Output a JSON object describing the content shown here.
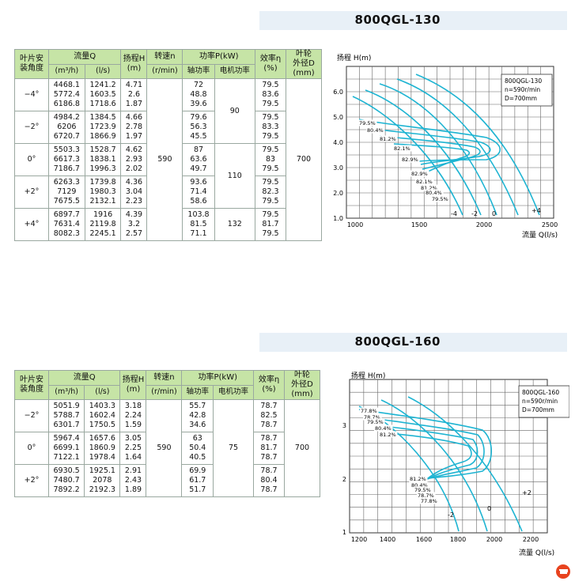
{
  "sections": [
    {
      "model": "800QGL-130",
      "headers": {
        "angle": "叶片安\n装角度",
        "flow": "流量Q",
        "flow_m3": "(m³/h)",
        "flow_ls": "(l/s)",
        "head": "扬程H\n(m)",
        "speed": "转速n",
        "speed_unit": "(r/min)",
        "power": "功率P(kW)",
        "shaft_power": "轴功率",
        "motor_power": "电机功率",
        "eff": "效率η\n(%)",
        "dia": "叶轮\n外径D\n(mm)"
      },
      "speed_value": "590",
      "dia_value": "700",
      "rows": [
        {
          "angle": "−4°",
          "q_m3": "4468.1\n5772.4\n6186.8",
          "q_ls": "1241.2\n1603.5\n1718.6",
          "h": "4.71\n2.6\n1.87",
          "shaft": "72\n48.8\n39.6",
          "eff": "79.5\n83.6\n79.5"
        },
        {
          "angle": "−2°",
          "q_m3": "4984.2\n6206\n6720.7",
          "q_ls": "1384.5\n1723.9\n1866.9",
          "h": "4.66\n2.78\n1.97",
          "shaft": "79.6\n56.3\n45.5",
          "eff": "79.5\n83.3\n79.5"
        },
        {
          "angle": "0°",
          "q_m3": "5503.3\n6617.3\n7186.7",
          "q_ls": "1528.7\n1838.1\n1996.3",
          "h": "4.62\n2.93\n2.02",
          "shaft": "87\n63.6\n49.7",
          "eff": "79.5\n83\n79.5"
        },
        {
          "angle": "+2°",
          "q_m3": "6263.3\n7129\n7675.5",
          "q_ls": "1739.8\n1980.3\n2132.1",
          "h": "4.36\n3.04\n2.23",
          "shaft": "93.6\n71.4\n58.6",
          "eff": "79.5\n82.3\n79.5"
        },
        {
          "angle": "+4°",
          "q_m3": "6897.7\n7631.4\n8082.3",
          "q_ls": "1916\n2119.8\n2245.1",
          "h": "4.39\n3.2\n2.57",
          "shaft": "103.8\n81.5\n71.1",
          "eff": "79.5\n81.7\n79.5"
        }
      ],
      "motor_groups": [
        "90",
        "110",
        "132"
      ],
      "chart": {
        "ylabel": "扬程 H(m)",
        "xlabel": "流量 Q(l/s)",
        "legend": [
          "800QGL-130",
          "n=590r/min",
          "D=700mm"
        ],
        "x_ticks": [
          "1000",
          "1500",
          "2000",
          "2500"
        ],
        "y_ticks": [
          "1.0",
          "2.0",
          "3.0",
          "4.0",
          "5.0",
          "6.0"
        ],
        "eff_labels": [
          "79.5%",
          "80.4%",
          "81.2%",
          "82.1%",
          "82.9%",
          "82.9%",
          "82.1%",
          "81.2%",
          "80.4%",
          "79.5%"
        ],
        "angle_labels": [
          "-4",
          "-2",
          "0",
          "+4"
        ]
      }
    },
    {
      "model": "800QGL-160",
      "speed_value": "590",
      "dia_value": "700",
      "motor_value": "75",
      "rows": [
        {
          "angle": "−2°",
          "q_m3": "5051.9\n5788.7\n6301.7",
          "q_ls": "1403.3\n1602.4\n1750.5",
          "h": "3.18\n2.24\n1.59",
          "shaft": "55.7\n42.8\n34.6",
          "eff": "78.7\n82.5\n78.7"
        },
        {
          "angle": "0°",
          "q_m3": "5967.4\n6699.1\n7122.1",
          "q_ls": "1657.6\n1860.9\n1978.4",
          "h": "3.05\n2.25\n1.64",
          "shaft": "63\n50.4\n40.5",
          "eff": "78.7\n81.7\n78.7"
        },
        {
          "angle": "+2°",
          "q_m3": "6930.5\n7480.7\n7892.2",
          "q_ls": "1925.1\n2078\n2192.3",
          "h": "2.91\n2.43\n1.89",
          "shaft": "69.9\n61.7\n51.7",
          "eff": "78.7\n80.4\n78.7"
        }
      ],
      "chart": {
        "ylabel": "扬程 H(m)",
        "xlabel": "流量 Q(l/s)",
        "legend": [
          "800QGL-160",
          "n=590r/min",
          "D=700mm"
        ],
        "x_ticks": [
          "1200",
          "1400",
          "1600",
          "1800",
          "2000",
          "2200"
        ],
        "y_ticks": [
          "1",
          "2",
          "3"
        ],
        "eff_labels": [
          "77.8%",
          "78.7%",
          "79.5%",
          "80.4%",
          "81.2%",
          "81.2%",
          "80.4%",
          "79.5%",
          "78.7%",
          "77.8%"
        ],
        "angle_labels": [
          "-2",
          "0",
          "+2"
        ]
      }
    }
  ],
  "colors": {
    "header_green": "#c6e4a6",
    "curve_cyan": "#1eb4d2",
    "title_band": "#e8f0f7"
  },
  "logo_icon": "brand-logo-icon"
}
